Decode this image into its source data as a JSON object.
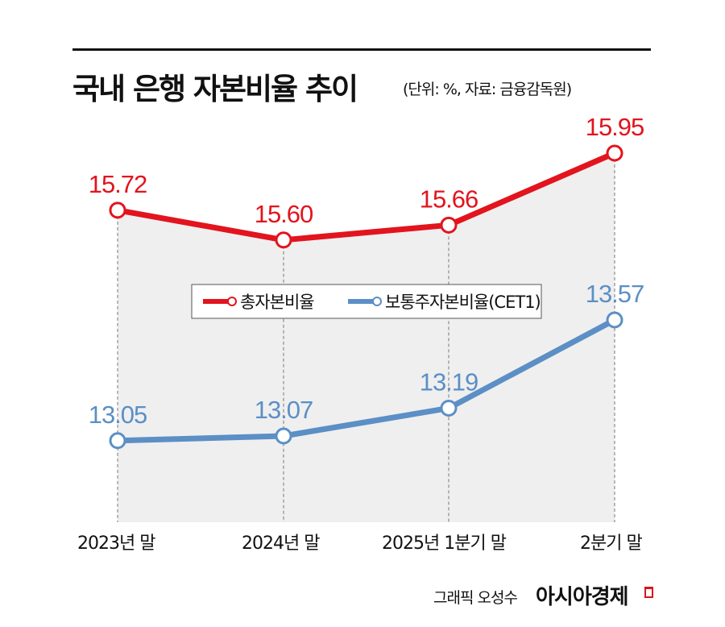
{
  "header": {
    "title": "국내 은행 자본비율 추이",
    "subtitle": "(단위: %, 자료: 금융감독원)"
  },
  "footer": {
    "credit": "그래픽 오성수",
    "brand": "아시아경제"
  },
  "chart_data": {
    "type": "line",
    "title": "국내 은행 자본비율 추이",
    "categories": [
      "2023년 말",
      "2024년 말",
      "2025년 1분기 말",
      "2분기 말"
    ],
    "series": [
      {
        "name": "총자본비율",
        "values": [
          15.72,
          15.6,
          15.66,
          15.95
        ],
        "color": "#e2141d"
      },
      {
        "name": "보통주자본비율(CET1)",
        "values": [
          13.05,
          13.07,
          13.19,
          13.57
        ],
        "color": "#5b8fc5"
      }
    ],
    "legend": "center",
    "grid": false,
    "area_fill": "#efefef"
  }
}
